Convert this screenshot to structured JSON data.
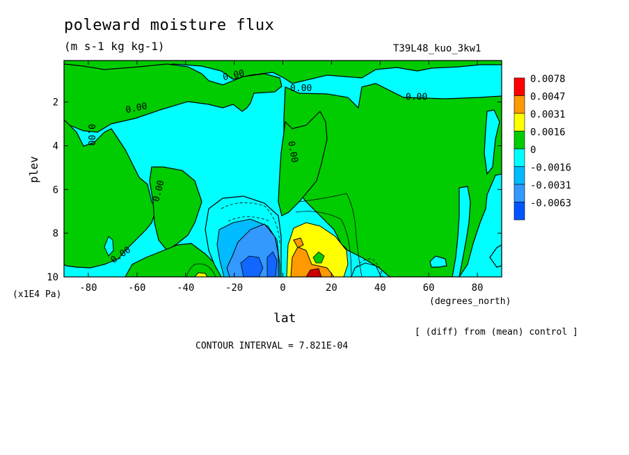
{
  "header": {
    "title": "poleward moisture flux",
    "units": "(m s-1 kg kg-1)",
    "run_name": "T39L48_kuo_3kw1"
  },
  "axes": {
    "xlabel": "lat",
    "ylabel": "plev",
    "x_unit": "(degrees_north)",
    "y_unit": "(x1E4 Pa)"
  },
  "footer": {
    "diff_note": "[ (diff) from (mean) control ]",
    "contour_interval": "CONTOUR INTERVAL = 7.821E-04"
  },
  "chart_data": {
    "type": "heatmap",
    "title": "poleward moisture flux",
    "xlabel": "lat",
    "ylabel": "plev",
    "xlim": [
      -90,
      90
    ],
    "ylim": [
      10,
      0.1
    ],
    "y_inverted": true,
    "x_ticks": [
      -80,
      -60,
      -40,
      -20,
      0,
      20,
      40,
      60,
      80
    ],
    "x_tick_labels": [
      "-80",
      "-60",
      "-40",
      "-20",
      "0",
      "20",
      "40",
      "60",
      "80"
    ],
    "y_ticks": [
      2,
      4,
      6,
      8,
      10
    ],
    "y_tick_labels": [
      "2",
      "4",
      "6",
      "8",
      "10"
    ],
    "colorbar": {
      "labels": [
        "0.0078",
        "0.0047",
        "0.0031",
        "0.0016",
        "0",
        "-0.0016",
        "-0.0031",
        "-0.0063"
      ],
      "colors": [
        "#ff0000",
        "#ff9900",
        "#ffff00",
        "#00cc00",
        "#00ffff",
        "#00bbff",
        "#3399ff",
        "#0055ff"
      ],
      "top_color": "#ff0000",
      "bottom_color": "#0044ff"
    },
    "contour_labels": [
      {
        "text": "0.00",
        "lat": -20,
        "plev": 0.9
      },
      {
        "text": "0.00",
        "lat": 7.5,
        "plev": 1.5
      },
      {
        "text": "0.00",
        "lat": 55,
        "plev": 1.9
      },
      {
        "text": "0.00",
        "lat": -60,
        "plev": 2.4
      },
      {
        "text": "0.00",
        "lat": -80,
        "plev": 3.5
      },
      {
        "text": "0.00",
        "lat": 3,
        "plev": 4.3
      },
      {
        "text": "0.00",
        "lat": -50,
        "plev": 6.1
      },
      {
        "text": "0.00",
        "lat": -66,
        "plev": 9.1
      }
    ],
    "regions": [
      {
        "name": "green",
        "value_range": [
          0,
          0.0016
        ],
        "color": "#00cc00"
      },
      {
        "name": "cyan",
        "value_range": [
          -0.0016,
          0
        ],
        "color": "#00ffff"
      },
      {
        "name": "yellow",
        "value_range": [
          0.0016,
          0.0031
        ],
        "color": "#ffff00"
      },
      {
        "name": "orange",
        "value_range": [
          0.0031,
          0.0047
        ],
        "color": "#ff9900"
      },
      {
        "name": "red",
        "value_range": [
          0.0047,
          0.0078
        ],
        "color": "#ff0000"
      },
      {
        "name": "light-blue",
        "value_range": [
          -0.0031,
          -0.0016
        ],
        "color": "#00bbff"
      },
      {
        "name": "mid-blue",
        "value_range": [
          -0.0063,
          -0.0031
        ],
        "color": "#3399ff"
      }
    ]
  }
}
